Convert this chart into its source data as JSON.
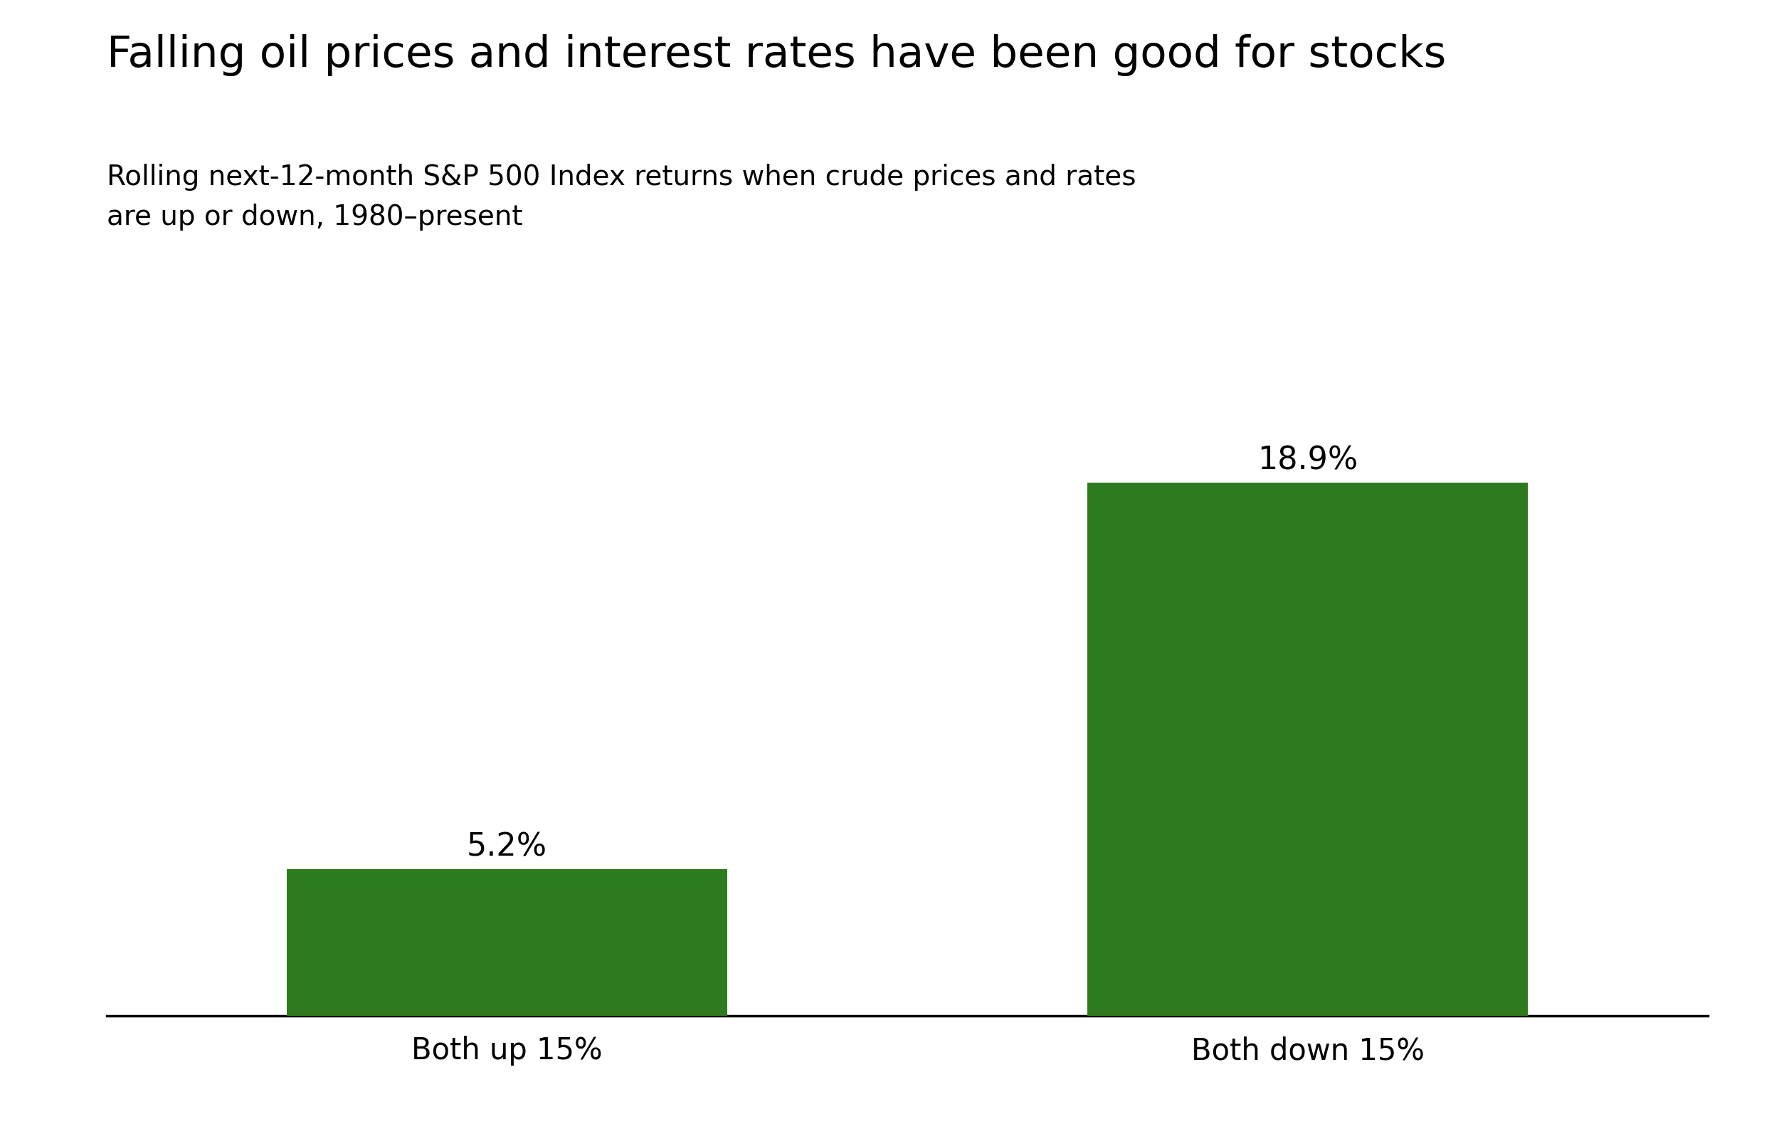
{
  "title": "Falling oil prices and interest rates have been good for stocks",
  "subtitle": "Rolling next-12-month S&P 500 Index returns when crude prices and rates\nare up or down, 1980–present",
  "categories": [
    "Both up 15%",
    "Both down 15%"
  ],
  "values": [
    5.2,
    18.9
  ],
  "bar_color": "#2d7a1f",
  "value_labels": [
    "5.2%",
    "18.9%"
  ],
  "background_color": "#ffffff",
  "title_fontsize": 44,
  "subtitle_fontsize": 28,
  "label_fontsize": 32,
  "tick_fontsize": 30,
  "ylim": [
    0,
    22
  ]
}
